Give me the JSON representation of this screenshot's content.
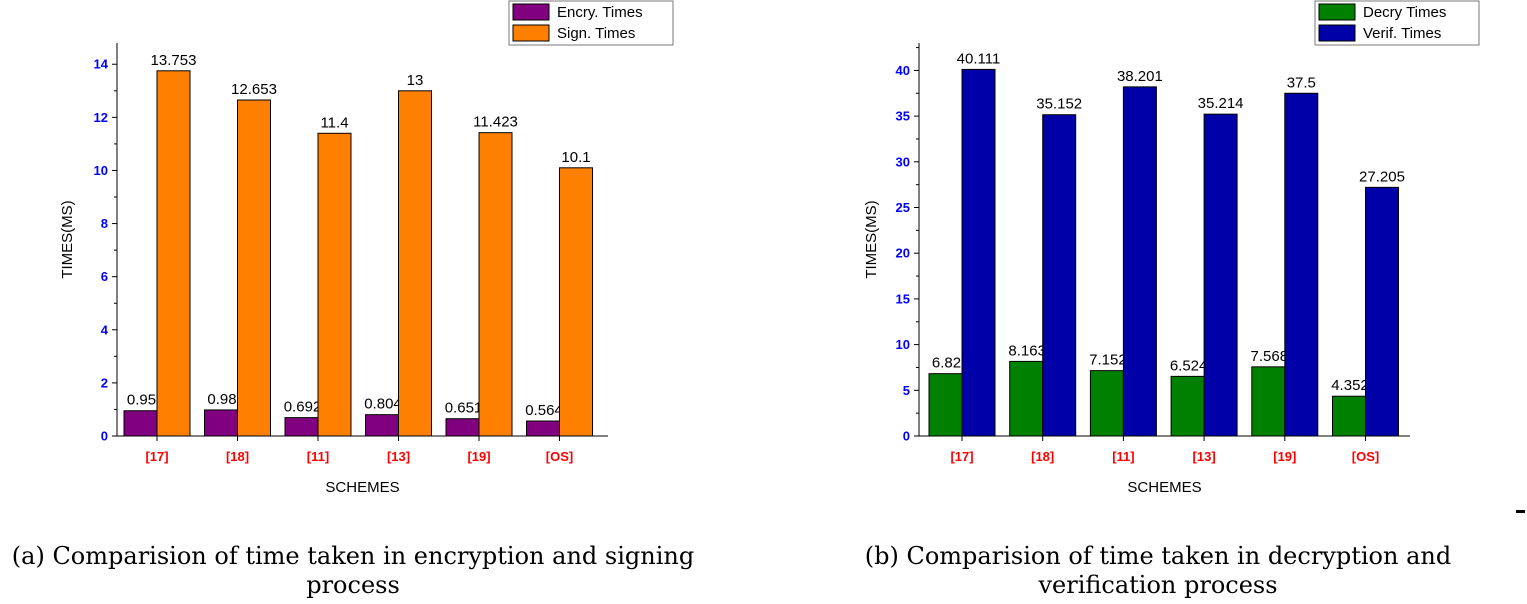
{
  "colors": {
    "encry": "#800080",
    "sign": "#ff8000",
    "decry": "#008000",
    "verif": "#0000a8",
    "tick_y": "#0000ff",
    "tick_x": "#ff0000"
  },
  "chart_data": [
    {
      "type": "bar",
      "categories": [
        "[17]",
        "[18]",
        "[11]",
        "[13]",
        "[19]",
        "[OS]"
      ],
      "series": [
        {
          "name": "Encry. Times",
          "values": [
            0.951,
            0.981,
            0.692,
            0.804,
            0.651,
            0.564
          ],
          "labels": [
            "0.95",
            "0.98",
            "0.692",
            "0.804",
            "0.651",
            "0.564"
          ]
        },
        {
          "name": "Sign. Times",
          "values": [
            13.753,
            12.653,
            11.4,
            13,
            11.423,
            10.1
          ],
          "labels": [
            "13.753",
            "12.653",
            "11.4",
            "13",
            "11.423",
            "10.1"
          ]
        }
      ],
      "xlabel": "SCHEMES",
      "ylabel": "TIMES(MS)",
      "ylim": [
        0,
        14.8
      ],
      "yticks": [
        0,
        2,
        4,
        6,
        8,
        10,
        12,
        14
      ],
      "legend": "top-right",
      "caption": "(a) Comparision of time taken in encryption and signing process"
    },
    {
      "type": "bar",
      "categories": [
        "[17]",
        "[18]",
        "[11]",
        "[13]",
        "[19]",
        "[OS]"
      ],
      "series": [
        {
          "name": "Decry Times",
          "values": [
            6.82,
            8.163,
            7.152,
            6.524,
            7.568,
            4.352
          ],
          "labels": [
            "6.82",
            "8.163",
            "7.152",
            "6.524",
            "7.568",
            "4.352"
          ]
        },
        {
          "name": "Verif. Times",
          "values": [
            40.111,
            35.152,
            38.201,
            35.214,
            37.5,
            27.205
          ],
          "labels": [
            "40.111",
            "35.152",
            "38.201",
            "35.214",
            "37.5",
            "27.205"
          ]
        }
      ],
      "xlabel": "SCHEMES",
      "ylabel": "TIMES(MS)",
      "ylim": [
        0,
        43
      ],
      "yticks": [
        0,
        5,
        10,
        15,
        20,
        25,
        30,
        35,
        40
      ],
      "legend": "top-right",
      "caption": "(b) Comparision of time taken in decryption and verification process"
    }
  ]
}
